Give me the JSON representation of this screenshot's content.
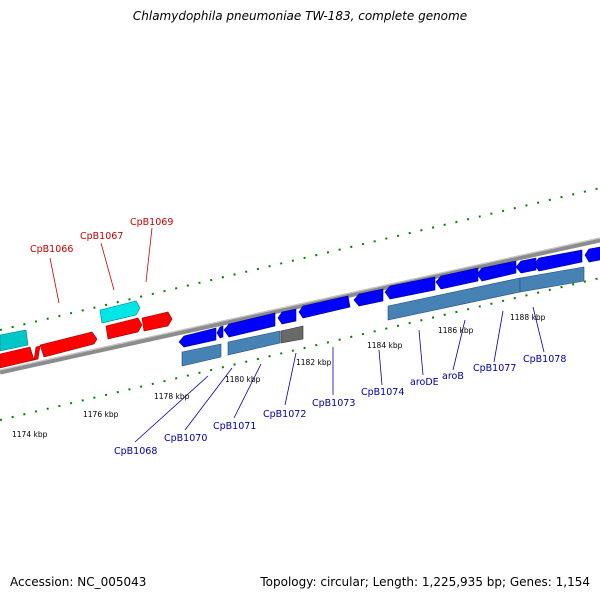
{
  "title": "Chlamydophila pneumoniae TW-183, complete genome",
  "footer": {
    "accession": "Accession: NC_005043",
    "summary": "Topology: circular; Length: 1,225,935 bp; Genes: 1,154"
  },
  "colors": {
    "forward_top": "#ff0000",
    "forward_cyan": "#00ffff",
    "reverse_blue": "#0000ff",
    "reverse_steel": "#4682b4",
    "reverse_gray": "#696969",
    "label_red": "#cc0000",
    "label_blue": "#0000aa",
    "tick_green": "#008000",
    "backbone": "#8c8c8c"
  },
  "forward_labels": [
    "CpB1066",
    "CpB1067",
    "CpB1069"
  ],
  "reverse_labels": [
    "CpB1068",
    "CpB1070",
    "CpB1071",
    "CpB1072",
    "CpB1073",
    "CpB1074",
    "aroDE",
    "aroB",
    "CpB1077",
    "CpB1078"
  ],
  "kbp_labels": [
    "1174 kbp",
    "1176 kbp",
    "1178 kbp",
    "1180 kbp",
    "1182 kbp",
    "1184 kbp",
    "1186 kbp",
    "1188 kbp"
  ]
}
